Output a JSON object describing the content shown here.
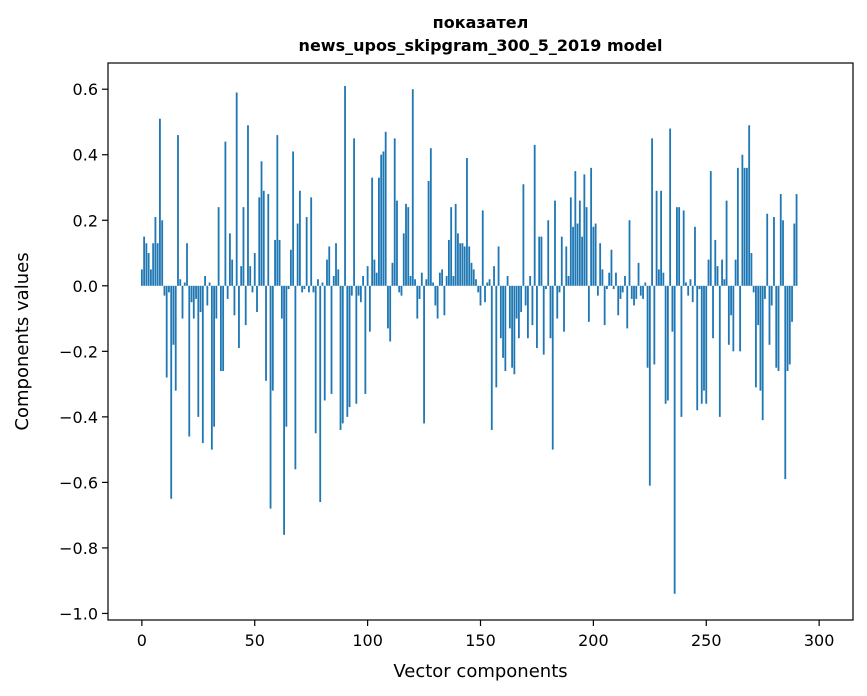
{
  "chart_data": {
    "type": "bar",
    "title": [
      "показател",
      "news_upos_skipgram_300_5_2019 model"
    ],
    "xlabel": "Vector components",
    "ylabel": "Components values",
    "xlim": [
      -15,
      315
    ],
    "ylim": [
      -1.02,
      0.68
    ],
    "xticks": [
      0,
      50,
      100,
      150,
      200,
      250,
      300
    ],
    "xtick_labels": [
      "0",
      "50",
      "100",
      "150",
      "200",
      "250",
      "300"
    ],
    "yticks": [
      0.6,
      0.4,
      0.2,
      0.0,
      -0.2,
      -0.4,
      -0.6,
      -0.8,
      -1.0
    ],
    "ytick_labels": [
      "0.6",
      "0.4",
      "0.2",
      "0.0",
      "−0.2",
      "−0.4",
      "−0.6",
      "−0.8",
      "−1.0"
    ],
    "grid": false,
    "bar_color": "#1f77b4",
    "x_start": 0,
    "values": [
      0.05,
      0.15,
      0.13,
      0.1,
      0.05,
      0.13,
      0.21,
      0.13,
      0.51,
      0.2,
      -0.03,
      -0.28,
      -0.02,
      -0.65,
      -0.18,
      -0.32,
      0.46,
      0.02,
      -0.1,
      0.01,
      0.13,
      -0.46,
      -0.05,
      -0.1,
      -0.04,
      -0.4,
      -0.08,
      -0.48,
      0.03,
      -0.06,
      0.01,
      -0.5,
      -0.43,
      -0.1,
      0.24,
      -0.26,
      -0.26,
      0.44,
      -0.04,
      0.16,
      0.08,
      -0.09,
      0.59,
      -0.19,
      0.06,
      0.24,
      -0.12,
      0.49,
      0.06,
      -0.02,
      0.1,
      -0.08,
      0.27,
      0.38,
      0.29,
      -0.29,
      0.28,
      -0.68,
      -0.32,
      0.14,
      0.46,
      0.14,
      -0.1,
      -0.76,
      -0.43,
      -0.01,
      0.11,
      0.41,
      -0.56,
      0.19,
      0.29,
      -0.02,
      -0.01,
      0.21,
      -0.02,
      0.27,
      -0.02,
      -0.45,
      0.02,
      -0.66,
      0.01,
      -0.35,
      0.08,
      0.12,
      -0.33,
      0.03,
      0.13,
      0.05,
      -0.44,
      -0.42,
      0.61,
      -0.4,
      -0.37,
      -0.03,
      0.45,
      -0.36,
      -0.03,
      -0.05,
      0.03,
      -0.33,
      0.06,
      -0.14,
      0.33,
      0.08,
      0.04,
      0.33,
      0.4,
      0.41,
      0.47,
      -0.13,
      -0.17,
      0.07,
      0.45,
      0.26,
      -0.02,
      -0.03,
      0.16,
      0.25,
      0.24,
      0.03,
      0.6,
      0.02,
      -0.1,
      -0.04,
      0.04,
      -0.42,
      0.02,
      0.32,
      0.42,
      0.01,
      -0.06,
      -0.1,
      0.04,
      0.05,
      -0.09,
      0.03,
      0.14,
      0.24,
      0.03,
      0.25,
      0.16,
      0.13,
      0.13,
      0.12,
      0.39,
      0.12,
      0.07,
      0.05,
      0.02,
      -0.02,
      -0.06,
      0.23,
      -0.05,
      0.01,
      0.02,
      -0.44,
      0.06,
      -0.31,
      0.12,
      -0.16,
      -0.22,
      -0.26,
      0.03,
      -0.13,
      -0.25,
      -0.27,
      -0.1,
      -0.16,
      -0.08,
      0.31,
      -0.06,
      -0.16,
      0.03,
      -0.12,
      0.43,
      -0.19,
      0.15,
      0.15,
      -0.21,
      -0.01,
      0.2,
      -0.16,
      -0.5,
      0.26,
      -0.1,
      -0.02,
      0.15,
      -0.14,
      0.12,
      0.03,
      0.27,
      0.18,
      0.35,
      0.19,
      0.26,
      0.15,
      0.34,
      0.24,
      -0.11,
      0.36,
      0.18,
      0.19,
      -0.03,
      0.13,
      0.05,
      -0.12,
      -0.01,
      0.04,
      0.11,
      -0.01,
      0.04,
      -0.09,
      -0.04,
      -0.02,
      0.03,
      -0.13,
      0.2,
      -0.04,
      -0.06,
      -0.04,
      0.07,
      -0.03,
      -0.04,
      0.01,
      -0.25,
      -0.61,
      0.45,
      -0.24,
      0.29,
      0.05,
      0.29,
      0.04,
      -0.36,
      -0.35,
      0.48,
      -0.14,
      -0.94,
      0.24,
      0.24,
      -0.4,
      0.23,
      0.01,
      -0.03,
      0.02,
      -0.05,
      0.18,
      -0.38,
      -0.01,
      -0.36,
      -0.32,
      -0.36,
      0.08,
      0.35,
      -0.16,
      0.14,
      0.06,
      -0.4,
      0.08,
      0.02,
      0.26,
      -0.18,
      -0.09,
      -0.2,
      0.08,
      0.36,
      -0.2,
      0.4,
      0.36,
      0.36,
      0.49,
      0.1,
      -0.02,
      -0.31,
      -0.12,
      -0.32,
      -0.41,
      -0.04,
      0.22,
      -0.18,
      -0.06,
      0.21,
      -0.25,
      -0.26,
      0.28,
      0.2,
      -0.59,
      -0.26,
      -0.24,
      -0.11,
      0.19,
      0.28
    ]
  }
}
